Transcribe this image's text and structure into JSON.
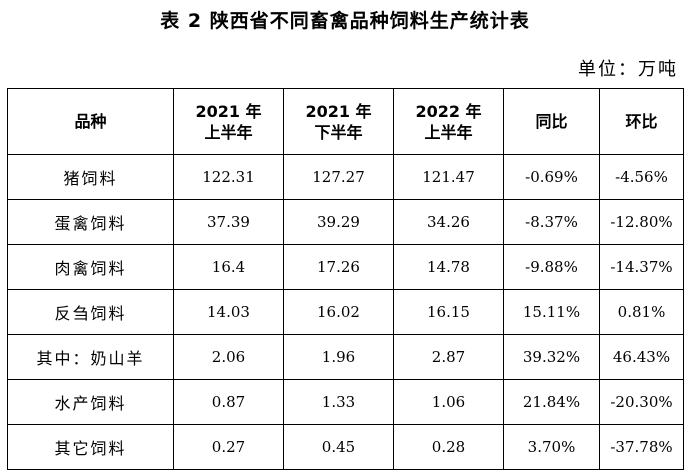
{
  "title": "表 2   陕西省不同畜禽品种饲料生产统计表",
  "unit": "单位：万吨",
  "headers": [
    "品种",
    "2021 年\n上半年",
    "2021 年\n下半年",
    "2022 年\n上半年",
    "同比",
    "环比"
  ],
  "rows": [
    [
      "猪饲料",
      "122.31",
      "127.27",
      "121.47",
      "-0.69%",
      "-4.56%"
    ],
    [
      "蛋禽饲料",
      "37.39",
      "39.29",
      "34.26",
      "-8.37%",
      "-12.80%"
    ],
    [
      "肉禽饲料",
      "16.4",
      "17.26",
      "14.78",
      "-9.88%",
      "-14.37%"
    ],
    [
      "反刍饲料",
      "14.03",
      "16.02",
      "16.15",
      "15.11%",
      "0.81%"
    ],
    [
      "其中：奶山羊",
      "2.06",
      "1.96",
      "2.87",
      "39.32%",
      "46.43%"
    ],
    [
      "水产饲料",
      "0.87",
      "1.33",
      "1.06",
      "21.84%",
      "-20.30%"
    ],
    [
      "其它饲料",
      "0.27",
      "0.45",
      "0.28",
      "3.70%",
      "-37.78%"
    ]
  ]
}
